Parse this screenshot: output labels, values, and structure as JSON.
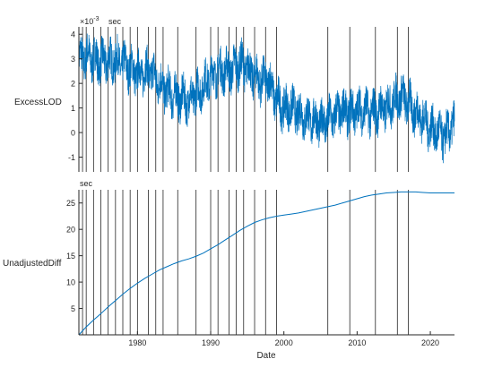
{
  "chart_data": [
    {
      "type": "line",
      "ylabel": "ExcessLOD",
      "unit_label": "sec",
      "exponent_label": "×10",
      "exponent_power": "-3",
      "xlim": [
        1972.0,
        2023.3
      ],
      "ylim": [
        -1.6,
        4.3
      ],
      "yticks": [
        -1,
        0,
        1,
        2,
        3,
        4
      ],
      "color": "#0072BD",
      "series": [
        {
          "x": [
            1972.0,
            1973.0,
            1974.0,
            1975.0,
            1976.0,
            1977.0,
            1978.0,
            1979.0,
            1980.0,
            1981.0,
            1982.0,
            1983.0,
            1984.0,
            1985.0,
            1986.0,
            1987.0,
            1988.0,
            1989.0,
            1990.0,
            1991.0,
            1992.0,
            1993.0,
            1994.0,
            1995.0,
            1996.0,
            1997.0,
            1998.0,
            1999.0,
            2000.0,
            2001.0,
            2002.0,
            2003.0,
            2004.0,
            2005.0,
            2006.0,
            2007.0,
            2008.0,
            2009.0,
            2010.0,
            2011.0,
            2012.0,
            2013.0,
            2014.0,
            2015.0,
            2016.0,
            2017.0,
            2018.0,
            2019.0,
            2020.0,
            2021.0,
            2022.0,
            2023.0
          ],
          "y": [
            3.0,
            3.1,
            3.0,
            2.9,
            2.9,
            2.9,
            2.8,
            2.6,
            2.4,
            2.5,
            2.4,
            2.0,
            1.7,
            1.5,
            1.4,
            1.3,
            1.6,
            1.9,
            2.3,
            2.5,
            2.5,
            2.6,
            2.8,
            2.6,
            2.3,
            2.1,
            2.1,
            1.3,
            1.0,
            1.0,
            0.8,
            0.6,
            0.5,
            0.4,
            0.5,
            0.7,
            0.9,
            0.8,
            0.9,
            0.9,
            0.8,
            0.9,
            1.0,
            1.3,
            1.5,
            1.2,
            0.8,
            0.6,
            0.2,
            0.0,
            -0.2,
            0.3
          ]
        }
      ]
    },
    {
      "type": "line",
      "xlabel": "Date",
      "ylabel": "UnadjustedDiff",
      "unit_label": "sec",
      "xlim": [
        1972.0,
        2023.3
      ],
      "ylim": [
        0,
        27.5
      ],
      "yticks": [
        5,
        10,
        15,
        20,
        25
      ],
      "xticks": [
        1980,
        1990,
        2000,
        2010,
        2020
      ],
      "color": "#0072BD",
      "series": [
        {
          "x": [
            1972.0,
            1973.0,
            1974.0,
            1975.0,
            1976.0,
            1977.0,
            1978.0,
            1979.0,
            1980.0,
            1981.0,
            1982.0,
            1983.0,
            1984.0,
            1985.0,
            1986.0,
            1987.0,
            1988.0,
            1989.0,
            1990.0,
            1991.0,
            1992.0,
            1993.0,
            1994.0,
            1995.0,
            1996.0,
            1997.0,
            1998.0,
            1999.0,
            2000.0,
            2001.0,
            2002.0,
            2003.0,
            2004.0,
            2005.0,
            2006.0,
            2007.0,
            2008.0,
            2009.0,
            2010.0,
            2011.0,
            2012.0,
            2013.0,
            2014.0,
            2015.0,
            2016.0,
            2017.0,
            2018.0,
            2019.0,
            2020.0,
            2021.0,
            2022.0,
            2023.0
          ],
          "y": [
            0.0,
            1.5,
            2.8,
            4.0,
            5.3,
            6.5,
            7.7,
            8.8,
            9.8,
            10.7,
            11.5,
            12.3,
            12.9,
            13.5,
            14.0,
            14.4,
            14.9,
            15.5,
            16.3,
            17.1,
            18.0,
            18.9,
            19.8,
            20.6,
            21.3,
            21.8,
            22.2,
            22.5,
            22.7,
            22.9,
            23.1,
            23.4,
            23.7,
            24.0,
            24.3,
            24.6,
            25.0,
            25.4,
            25.8,
            26.2,
            26.5,
            26.7,
            26.9,
            27.0,
            27.1,
            27.1,
            27.1,
            27.0,
            26.9,
            26.9,
            26.9,
            26.9
          ]
        }
      ]
    }
  ],
  "leap_second_years": [
    1972.0,
    1972.5,
    1973.0,
    1974.0,
    1975.0,
    1976.0,
    1977.0,
    1978.0,
    1979.0,
    1980.0,
    1981.5,
    1982.5,
    1983.5,
    1985.5,
    1988.0,
    1990.0,
    1991.0,
    1992.5,
    1993.5,
    1994.5,
    1996.0,
    1997.5,
    1999.0,
    2006.0,
    2009.0,
    2012.5,
    2015.5,
    2017.0
  ]
}
